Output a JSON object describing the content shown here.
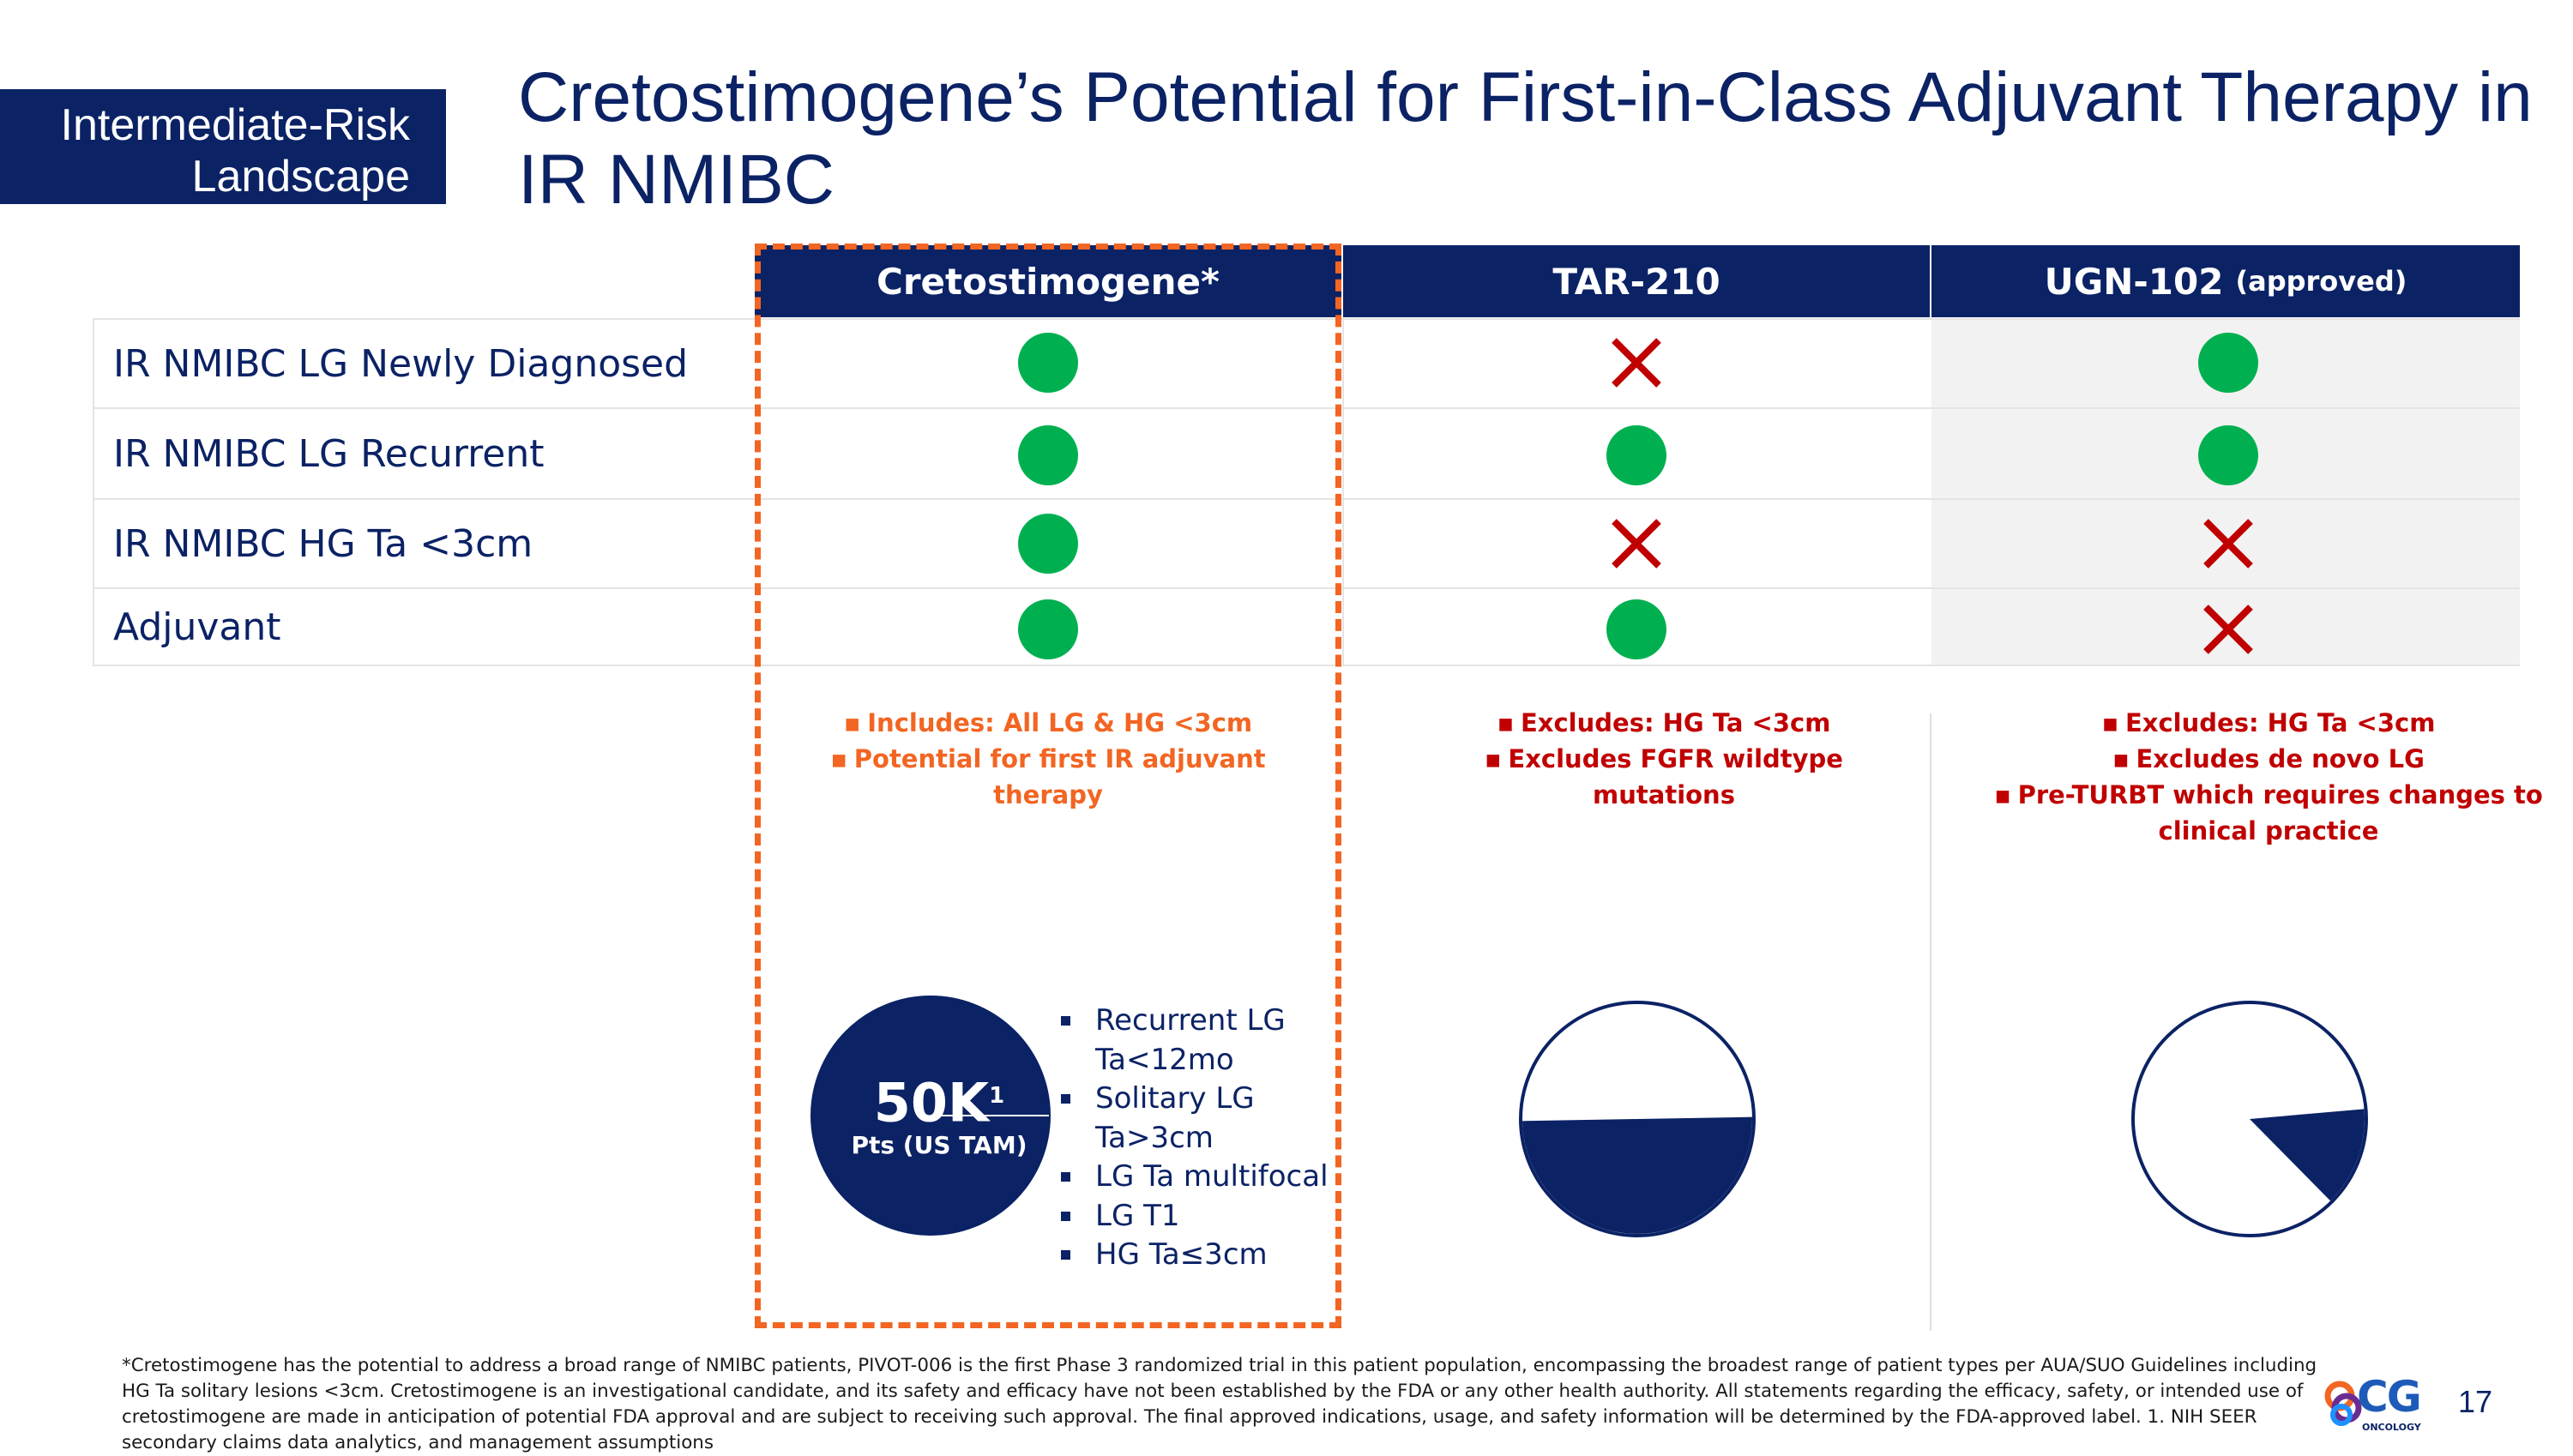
{
  "section_tag": "Intermediate-Risk Landscape",
  "title": "Cretostimogene’s Potential for First-in-Class Adjuvant Therapy in IR NMIBC",
  "columns": [
    {
      "name": "Cretostimogene*",
      "sub": ""
    },
    {
      "name": "TAR-210",
      "sub": ""
    },
    {
      "name": "UGN-102",
      "sub": "(approved)"
    }
  ],
  "rows": [
    {
      "label": "IR NMIBC LG Newly Diagnosed",
      "marks": [
        "check",
        "x",
        "check"
      ]
    },
    {
      "label": "IR NMIBC LG Recurrent",
      "marks": [
        "check",
        "check",
        "check"
      ]
    },
    {
      "label": "IR NMIBC HG Ta <3cm",
      "marks": [
        "check",
        "x",
        "x"
      ]
    },
    {
      "label": "Adjuvant",
      "marks": [
        "check",
        "check",
        "x"
      ]
    }
  ],
  "notes": {
    "cretostimogene": [
      "Includes: All LG & HG <3cm",
      "Potential for first IR adjuvant therapy"
    ],
    "tar210": [
      "Excludes: HG Ta <3cm",
      "Excludes FGFR wildtype mutations"
    ],
    "ugn102": [
      "Excludes: HG Ta <3cm",
      "Excludes de novo LG",
      "Pre-TURBT which requires changes to clinical practice"
    ]
  },
  "tam": {
    "value": "50K",
    "superscript": "1",
    "label": "Pts (US TAM)"
  },
  "pie_shares": {
    "cretostimogene": 1.0,
    "tar210": 0.5,
    "ugn102": 0.14
  },
  "segments": [
    "Recurrent LG Ta<12mo",
    "Solitary LG Ta>3cm",
    "LG Ta multifocal",
    "LG T1",
    "HG Ta≤3cm"
  ],
  "footnote": "*Cretostimogene has the potential to address a broad range of NMIBC patients, PIVOT-006 is the first Phase 3 randomized trial in this patient population, encompassing the broadest range of patient types per AUA/SUO Guidelines including HG Ta solitary lesions <3cm. Cretostimogene is an investigational candidate, and its safety and efficacy have not been established by the FDA or any other health authority. All statements regarding the efficacy, safety, or intended use of cretostimogene are made in anticipation of potential FDA approval and are subject to receiving such approval. The final approved indications, usage, and safety information will be determined by the FDA-approved label. 1. NIH SEER secondary claims data analytics, and management assumptions",
  "logo": {
    "text": "CG",
    "sub": "ONCOLOGY"
  },
  "page_number": "17",
  "colors": {
    "navy": "#0b2265",
    "green": "#00b050",
    "red": "#c00000",
    "orange": "#f26522"
  }
}
